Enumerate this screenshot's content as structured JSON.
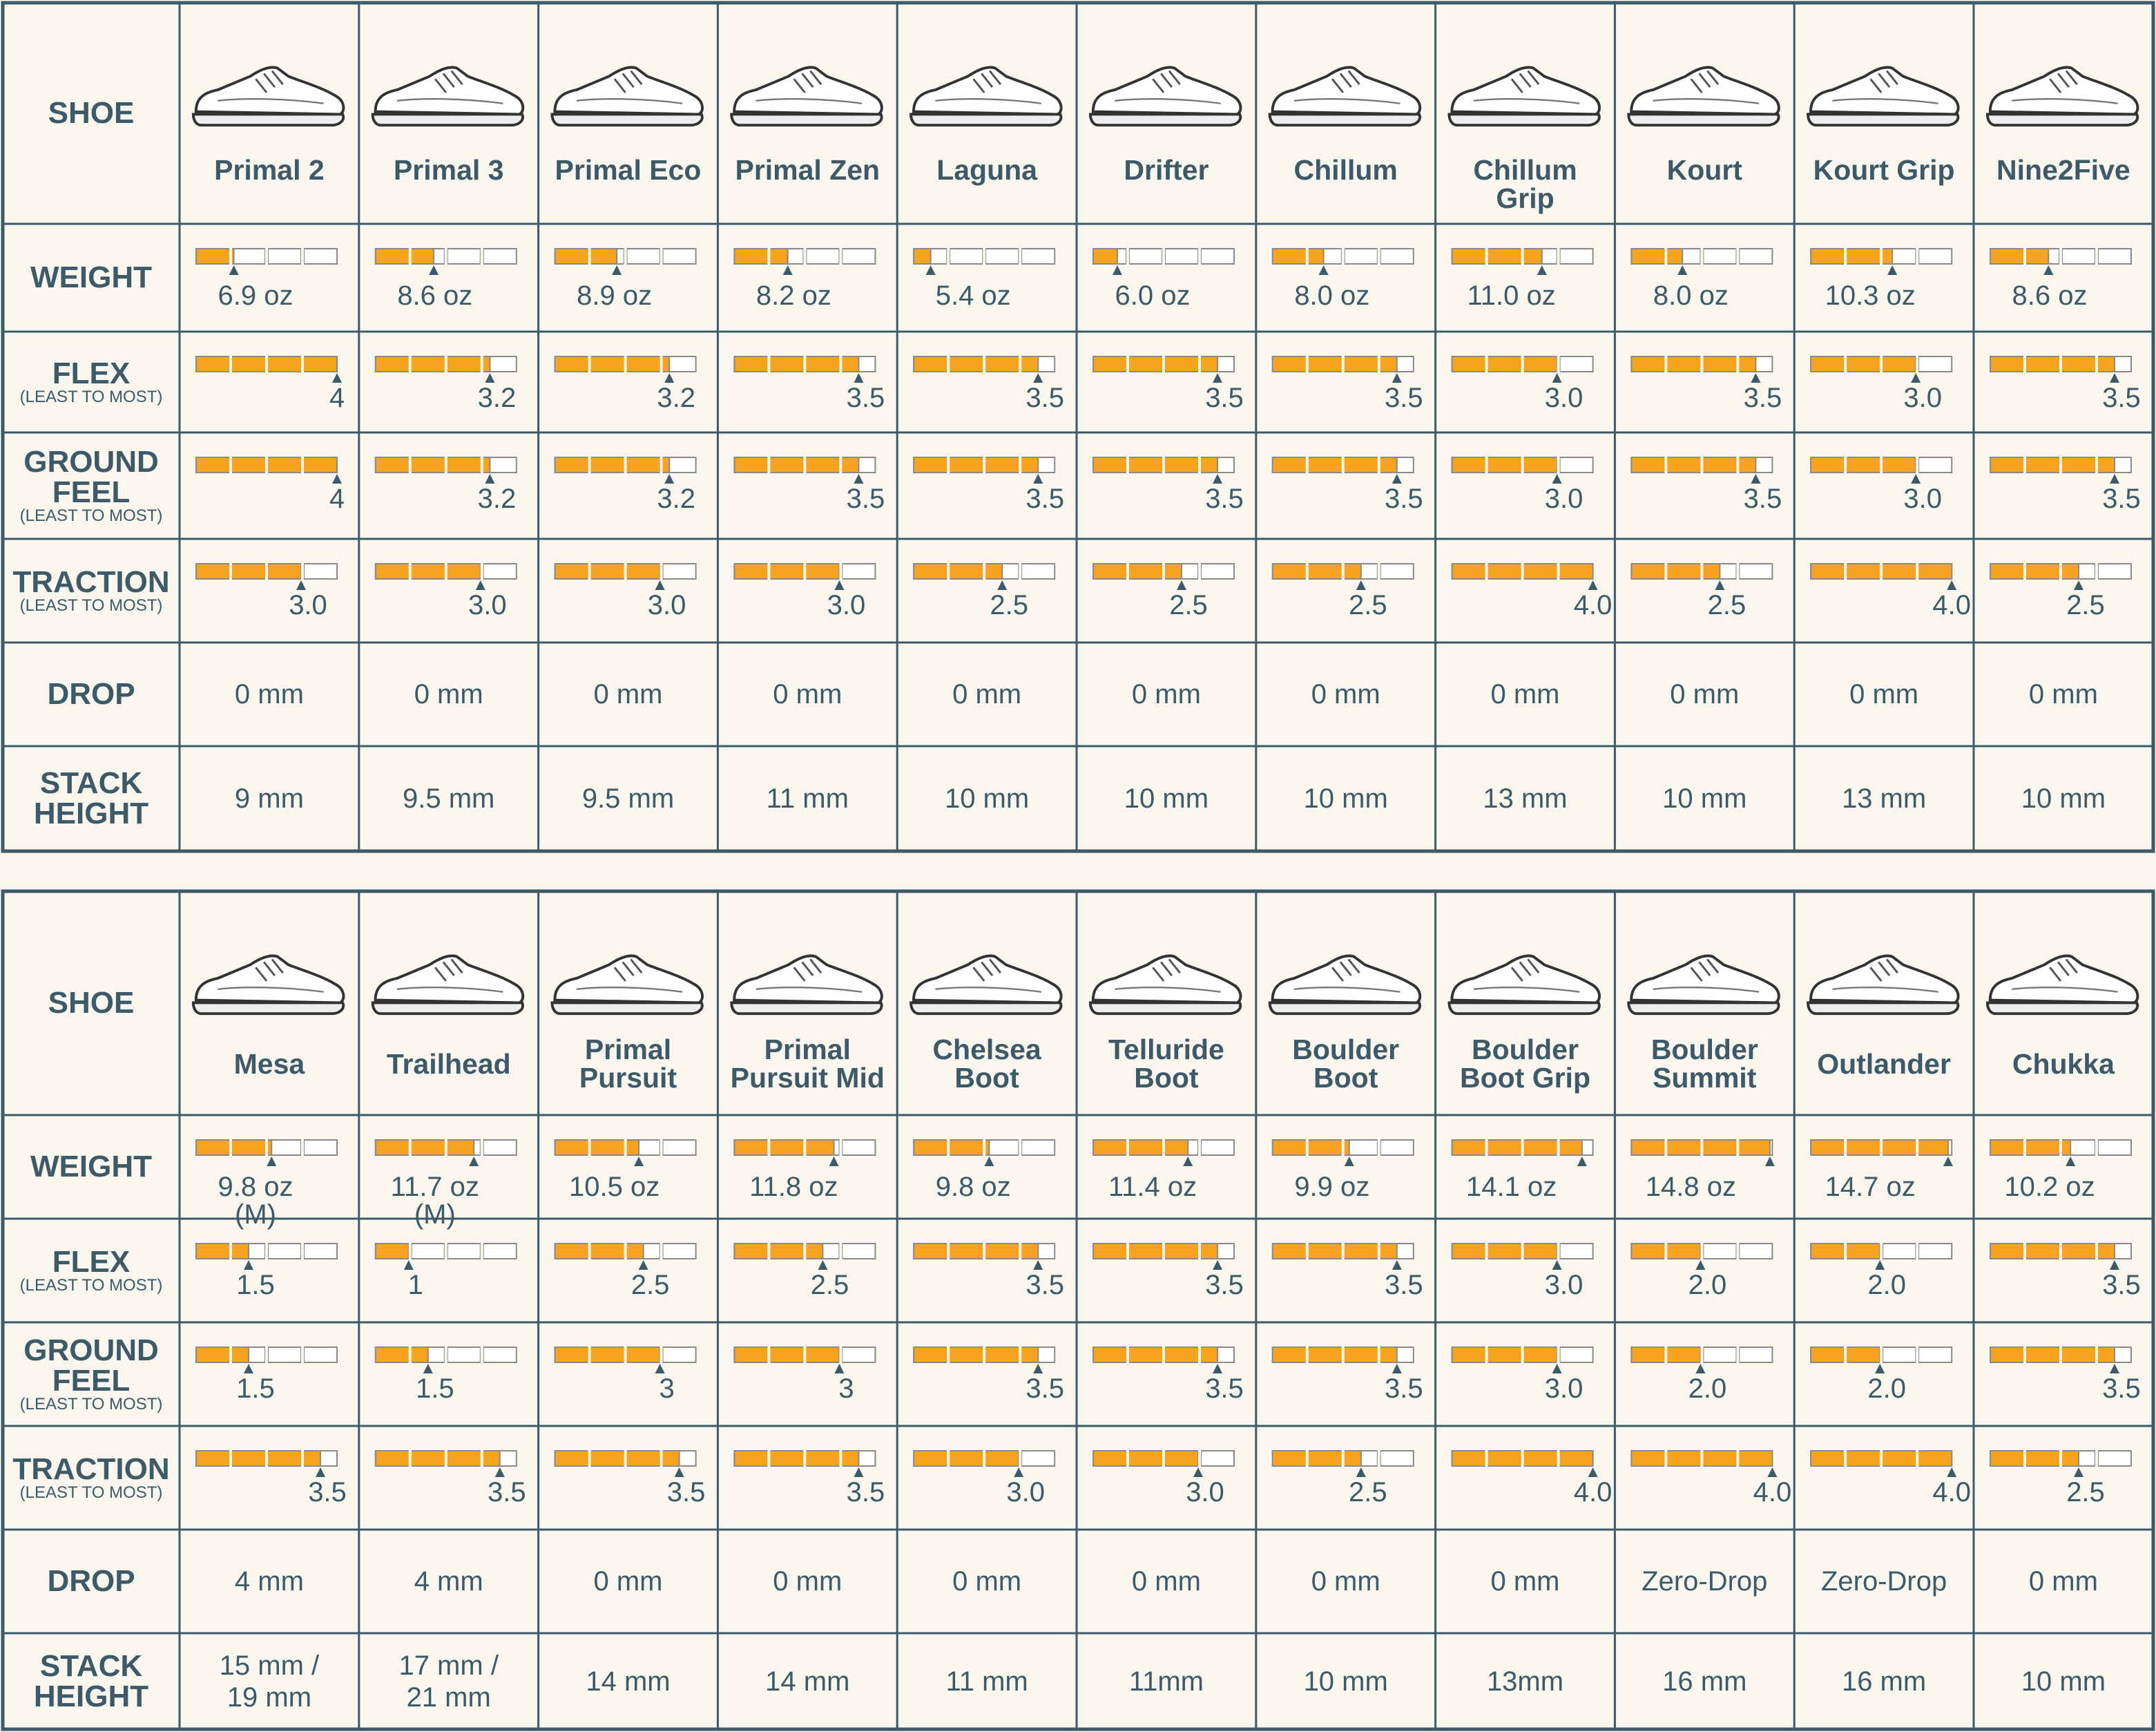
{
  "tables": [
    {
      "row_labels": [
        {
          "label": "SHOE"
        },
        {
          "label": "WEIGHT"
        },
        {
          "label": "FLEX",
          "note": "(LEAST TO MOST)"
        },
        {
          "label": "GROUND\nFEEL",
          "note": "(LEAST TO MOST)"
        },
        {
          "label": "TRACTION",
          "note": "(LEAST TO MOST)"
        },
        {
          "label": "DROP"
        },
        {
          "label": "STACK\nHEIGHT"
        }
      ],
      "shoes": [
        {
          "name": "Primal 2",
          "weight": {
            "value": 6.9,
            "label": "6.9 oz"
          },
          "flex": 4,
          "ground_feel": 4,
          "traction": {
            "value": 3,
            "label": "3.0"
          },
          "drop": "0 mm",
          "stack_height": "9 mm"
        },
        {
          "name": "Primal 3",
          "weight": {
            "value": 8.6,
            "label": "8.6 oz"
          },
          "flex": 3.2,
          "ground_feel": 3.2,
          "traction": {
            "value": 3,
            "label": "3.0"
          },
          "drop": "0 mm",
          "stack_height": "9.5 mm"
        },
        {
          "name": "Primal Eco",
          "weight": {
            "value": 8.9,
            "label": "8.9 oz"
          },
          "flex": 3.2,
          "ground_feel": 3.2,
          "traction": {
            "value": 3,
            "label": "3.0"
          },
          "drop": "0 mm",
          "stack_height": "9.5 mm"
        },
        {
          "name": "Primal Zen",
          "weight": {
            "value": 8.2,
            "label": "8.2 oz"
          },
          "flex": 3.5,
          "ground_feel": 3.5,
          "traction": {
            "value": 3,
            "label": "3.0"
          },
          "drop": "0 mm",
          "stack_height": "11 mm"
        },
        {
          "name": "Laguna",
          "weight": {
            "value": 5.4,
            "label": "5.4 oz"
          },
          "flex": 3.5,
          "ground_feel": 3.5,
          "traction": 2.5,
          "drop": "0 mm",
          "stack_height": "10 mm"
        },
        {
          "name": "Drifter",
          "weight": {
            "value": 6,
            "label": "6.0 oz"
          },
          "flex": 3.5,
          "ground_feel": 3.5,
          "traction": 2.5,
          "drop": "0 mm",
          "stack_height": "10 mm"
        },
        {
          "name": "Chillum",
          "weight": {
            "value": 8,
            "label": "8.0 oz"
          },
          "flex": 3.5,
          "ground_feel": 3.5,
          "traction": 2.5,
          "drop": "0 mm",
          "stack_height": "10 mm"
        },
        {
          "name": "Chillum\nGrip",
          "weight": {
            "value": 11,
            "label": "11.0 oz"
          },
          "flex": {
            "value": 3,
            "label": "3.0"
          },
          "ground_feel": {
            "value": 3,
            "label": "3.0"
          },
          "traction": {
            "value": 4,
            "label": "4.0"
          },
          "drop": "0 mm",
          "stack_height": "13 mm"
        },
        {
          "name": "Kourt",
          "weight": {
            "value": 8,
            "label": "8.0 oz"
          },
          "flex": 3.5,
          "ground_feel": 3.5,
          "traction": 2.5,
          "drop": "0 mm",
          "stack_height": "10 mm"
        },
        {
          "name": "Kourt Grip",
          "weight": {
            "value": 10.3,
            "label": "10.3 oz"
          },
          "flex": {
            "value": 3,
            "label": "3.0"
          },
          "ground_feel": {
            "value": 3,
            "label": "3.0"
          },
          "traction": {
            "value": 4,
            "label": "4.0"
          },
          "drop": "0 mm",
          "stack_height": "13 mm"
        },
        {
          "name": "Nine2Five",
          "weight": {
            "value": 8.6,
            "label": "8.6 oz"
          },
          "flex": 3.5,
          "ground_feel": 3.5,
          "traction": 2.5,
          "drop": "0 mm",
          "stack_height": "10 mm"
        }
      ]
    },
    {
      "row_labels": [
        {
          "label": "SHOE"
        },
        {
          "label": "WEIGHT"
        },
        {
          "label": "FLEX",
          "note": "(LEAST TO MOST)"
        },
        {
          "label": "GROUND\nFEEL",
          "note": "(LEAST TO MOST)"
        },
        {
          "label": "TRACTION",
          "note": "(LEAST TO MOST)"
        },
        {
          "label": "DROP"
        },
        {
          "label": "STACK\nHEIGHT"
        }
      ],
      "shoes": [
        {
          "name": "Mesa",
          "weight": {
            "value": 9.8,
            "label": "9.8 oz (M)"
          },
          "flex": 1.5,
          "ground_feel": 1.5,
          "traction": 3.5,
          "drop": "4 mm",
          "stack_height": "15 mm /\n19 mm"
        },
        {
          "name": "Trailhead",
          "weight": {
            "value": 11.7,
            "label": "11.7 oz (M)"
          },
          "flex": 1,
          "ground_feel": 1.5,
          "traction": 3.5,
          "drop": "4 mm",
          "stack_height": "17 mm /\n21 mm"
        },
        {
          "name": "Primal\nPursuit",
          "weight": {
            "value": 10.5,
            "label": "10.5 oz"
          },
          "flex": 2.5,
          "ground_feel": 3,
          "traction": 3.5,
          "drop": "0 mm",
          "stack_height": "14 mm"
        },
        {
          "name": "Primal\nPursuit Mid",
          "weight": {
            "value": 11.8,
            "label": "11.8 oz"
          },
          "flex": 2.5,
          "ground_feel": 3,
          "traction": 3.5,
          "drop": "0 mm",
          "stack_height": "14 mm"
        },
        {
          "name": "Chelsea\nBoot",
          "weight": {
            "value": 9.8,
            "label": "9.8 oz"
          },
          "flex": 3.5,
          "ground_feel": 3.5,
          "traction": {
            "value": 3,
            "label": "3.0"
          },
          "drop": "0 mm",
          "stack_height": "11 mm"
        },
        {
          "name": "Telluride\nBoot",
          "weight": {
            "value": 11.4,
            "label": "11.4 oz"
          },
          "flex": 3.5,
          "ground_feel": 3.5,
          "traction": {
            "value": 3,
            "label": "3.0"
          },
          "drop": "0 mm",
          "stack_height": "11mm"
        },
        {
          "name": "Boulder\nBoot",
          "weight": {
            "value": 9.9,
            "label": "9.9 oz"
          },
          "flex": 3.5,
          "ground_feel": 3.5,
          "traction": 2.5,
          "drop": "0 mm",
          "stack_height": "10 mm"
        },
        {
          "name": "Boulder\nBoot Grip",
          "weight": {
            "value": 14.1,
            "label": "14.1 oz"
          },
          "flex": {
            "value": 3,
            "label": "3.0"
          },
          "ground_feel": {
            "value": 3,
            "label": "3.0"
          },
          "traction": {
            "value": 4,
            "label": "4.0"
          },
          "drop": "0 mm",
          "stack_height": "13mm"
        },
        {
          "name": "Boulder\nSummit",
          "weight": {
            "value": 14.8,
            "label": "14.8 oz"
          },
          "flex": {
            "value": 2,
            "label": "2.0"
          },
          "ground_feel": {
            "value": 2,
            "label": "2.0"
          },
          "traction": {
            "value": 4,
            "label": "4.0"
          },
          "drop": "Zero-Drop",
          "stack_height": "16 mm"
        },
        {
          "name": "Outlander",
          "weight": {
            "value": 14.7,
            "label": "14.7 oz"
          },
          "flex": {
            "value": 2,
            "label": "2.0"
          },
          "ground_feel": {
            "value": 2,
            "label": "2.0"
          },
          "traction": {
            "value": 4,
            "label": "4.0"
          },
          "drop": "Zero-Drop",
          "stack_height": "16 mm"
        },
        {
          "name": "Chukka",
          "weight": {
            "value": 10.2,
            "label": "10.2 oz"
          },
          "flex": 3.5,
          "ground_feel": 3.5,
          "traction": 2.5,
          "drop": "0 mm",
          "stack_height": "10 mm"
        }
      ]
    }
  ]
}
